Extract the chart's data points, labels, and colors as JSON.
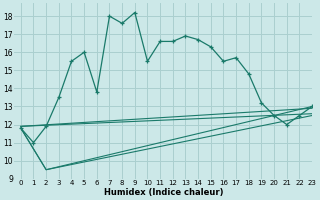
{
  "xlabel": "Humidex (Indice chaleur)",
  "bg_color": "#cce8e8",
  "grid_color": "#aacfcf",
  "line_color": "#1a7a6a",
  "xlim": [
    -0.5,
    23
  ],
  "ylim": [
    9.0,
    18.7
  ],
  "yticks": [
    9,
    10,
    11,
    12,
    13,
    14,
    15,
    16,
    17,
    18
  ],
  "xticks": [
    0,
    1,
    2,
    3,
    4,
    5,
    6,
    7,
    8,
    9,
    10,
    11,
    12,
    13,
    14,
    15,
    16,
    17,
    18,
    19,
    20,
    21,
    22,
    23
  ],
  "line1_x": [
    0,
    1,
    2,
    3,
    4,
    5,
    6,
    7,
    8,
    9,
    10,
    11,
    12,
    13,
    14,
    15,
    16,
    17,
    18,
    19,
    20,
    21,
    22,
    23
  ],
  "line1_y": [
    11.8,
    11.0,
    11.9,
    13.5,
    15.5,
    16.0,
    13.8,
    18.0,
    17.6,
    18.2,
    15.5,
    16.6,
    16.6,
    16.9,
    16.7,
    16.3,
    15.5,
    15.7,
    14.8,
    13.2,
    12.5,
    12.0,
    12.5,
    13.0
  ],
  "line2_x": [
    0,
    2,
    23
  ],
  "line2_y": [
    11.8,
    9.5,
    13.0
  ],
  "line3_x": [
    0,
    2,
    23
  ],
  "line3_y": [
    11.8,
    9.5,
    12.5
  ],
  "line4_x": [
    0,
    23
  ],
  "line4_y": [
    11.9,
    12.9
  ],
  "line5_x": [
    0,
    23
  ],
  "line5_y": [
    11.9,
    12.6
  ]
}
